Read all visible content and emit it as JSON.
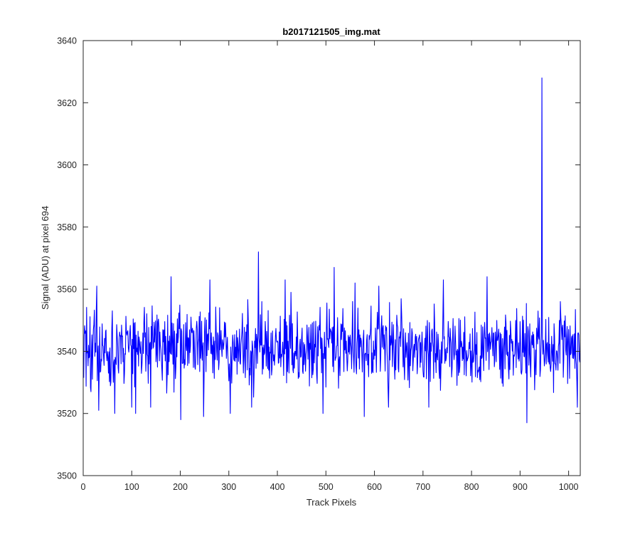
{
  "chart_data": {
    "type": "line",
    "title": "b2017121505_img.mat",
    "xlabel": "Track Pixels",
    "ylabel": "Signal (ADU) at pixel 694",
    "xlim": [
      0,
      1024
    ],
    "ylim": [
      3500,
      3640
    ],
    "xticks": [
      0,
      100,
      200,
      300,
      400,
      500,
      600,
      700,
      800,
      900,
      1000
    ],
    "yticks": [
      3500,
      3520,
      3540,
      3560,
      3580,
      3600,
      3620,
      3640
    ],
    "grid": false,
    "legend": "none",
    "line_color": "#0000ff",
    "series": [
      {
        "x_start": 1,
        "x_step": 1,
        "baseline": 3541,
        "noise_amplitude": 10,
        "seed": 694,
        "overrides": [
          {
            "x": 16,
            "y": 3527
          },
          {
            "x": 28,
            "y": 3561
          },
          {
            "x": 32,
            "y": 3521
          },
          {
            "x": 65,
            "y": 3520
          },
          {
            "x": 100,
            "y": 3522
          },
          {
            "x": 108,
            "y": 3520
          },
          {
            "x": 139,
            "y": 3522
          },
          {
            "x": 181,
            "y": 3564
          },
          {
            "x": 201,
            "y": 3518
          },
          {
            "x": 248,
            "y": 3519
          },
          {
            "x": 261,
            "y": 3563
          },
          {
            "x": 303,
            "y": 3520
          },
          {
            "x": 347,
            "y": 3522
          },
          {
            "x": 361,
            "y": 3572
          },
          {
            "x": 368,
            "y": 3556
          },
          {
            "x": 416,
            "y": 3563
          },
          {
            "x": 428,
            "y": 3559
          },
          {
            "x": 494,
            "y": 3520
          },
          {
            "x": 517,
            "y": 3567
          },
          {
            "x": 560,
            "y": 3562
          },
          {
            "x": 579,
            "y": 3519
          },
          {
            "x": 609,
            "y": 3561
          },
          {
            "x": 629,
            "y": 3522
          },
          {
            "x": 712,
            "y": 3522
          },
          {
            "x": 742,
            "y": 3563
          },
          {
            "x": 832,
            "y": 3564
          },
          {
            "x": 914,
            "y": 3517
          },
          {
            "x": 944,
            "y": 3546
          },
          {
            "x": 945,
            "y": 3628
          },
          {
            "x": 946,
            "y": 3545
          },
          {
            "x": 983,
            "y": 3556
          },
          {
            "x": 1018,
            "y": 3522
          }
        ]
      }
    ]
  }
}
